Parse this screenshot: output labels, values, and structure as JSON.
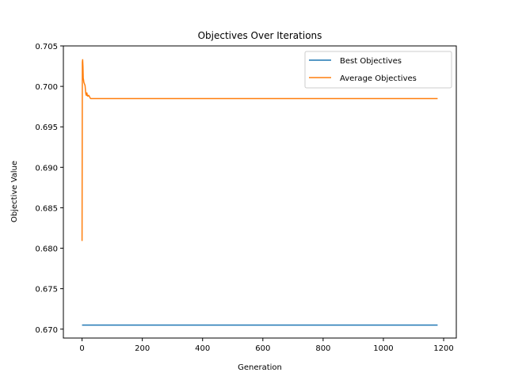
{
  "chart_data": {
    "type": "line",
    "title": "Objectives Over Iterations",
    "xlabel": "Generation",
    "ylabel": "Objective Value",
    "xlim": [
      -62,
      1242
    ],
    "ylim": [
      0.6689,
      0.705
    ],
    "xticks": [
      0,
      200,
      400,
      600,
      800,
      1000,
      1200
    ],
    "xtick_labels": [
      "0",
      "200",
      "400",
      "600",
      "800",
      "1000",
      "1200"
    ],
    "yticks": [
      0.67,
      0.675,
      0.68,
      0.685,
      0.69,
      0.695,
      0.7,
      0.705
    ],
    "ytick_labels": [
      "0.670",
      "0.675",
      "0.680",
      "0.685",
      "0.690",
      "0.695",
      "0.700",
      "0.705"
    ],
    "grid": false,
    "legend_position": "upper right",
    "series": [
      {
        "name": "Best Objectives",
        "color": "#1f77b4",
        "x": [
          0,
          1180
        ],
        "y": [
          0.6705,
          0.6705
        ]
      },
      {
        "name": "Average Objectives",
        "color": "#ff7f0e",
        "x": [
          0,
          1,
          2,
          3,
          4,
          5,
          6,
          8,
          10,
          12,
          13,
          14,
          15,
          16,
          18,
          20,
          22,
          25,
          28,
          32,
          40,
          60,
          100,
          300,
          600,
          900,
          1180
        ],
        "y": [
          0.6809,
          0.703,
          0.7033,
          0.7025,
          0.701,
          0.7008,
          0.7005,
          0.7003,
          0.7001,
          0.6992,
          0.699,
          0.6989,
          0.699,
          0.6992,
          0.6988,
          0.6988,
          0.6989,
          0.6987,
          0.6985,
          0.6985,
          0.6985,
          0.6985,
          0.6985,
          0.6985,
          0.6985,
          0.6985,
          0.6985
        ]
      }
    ]
  }
}
